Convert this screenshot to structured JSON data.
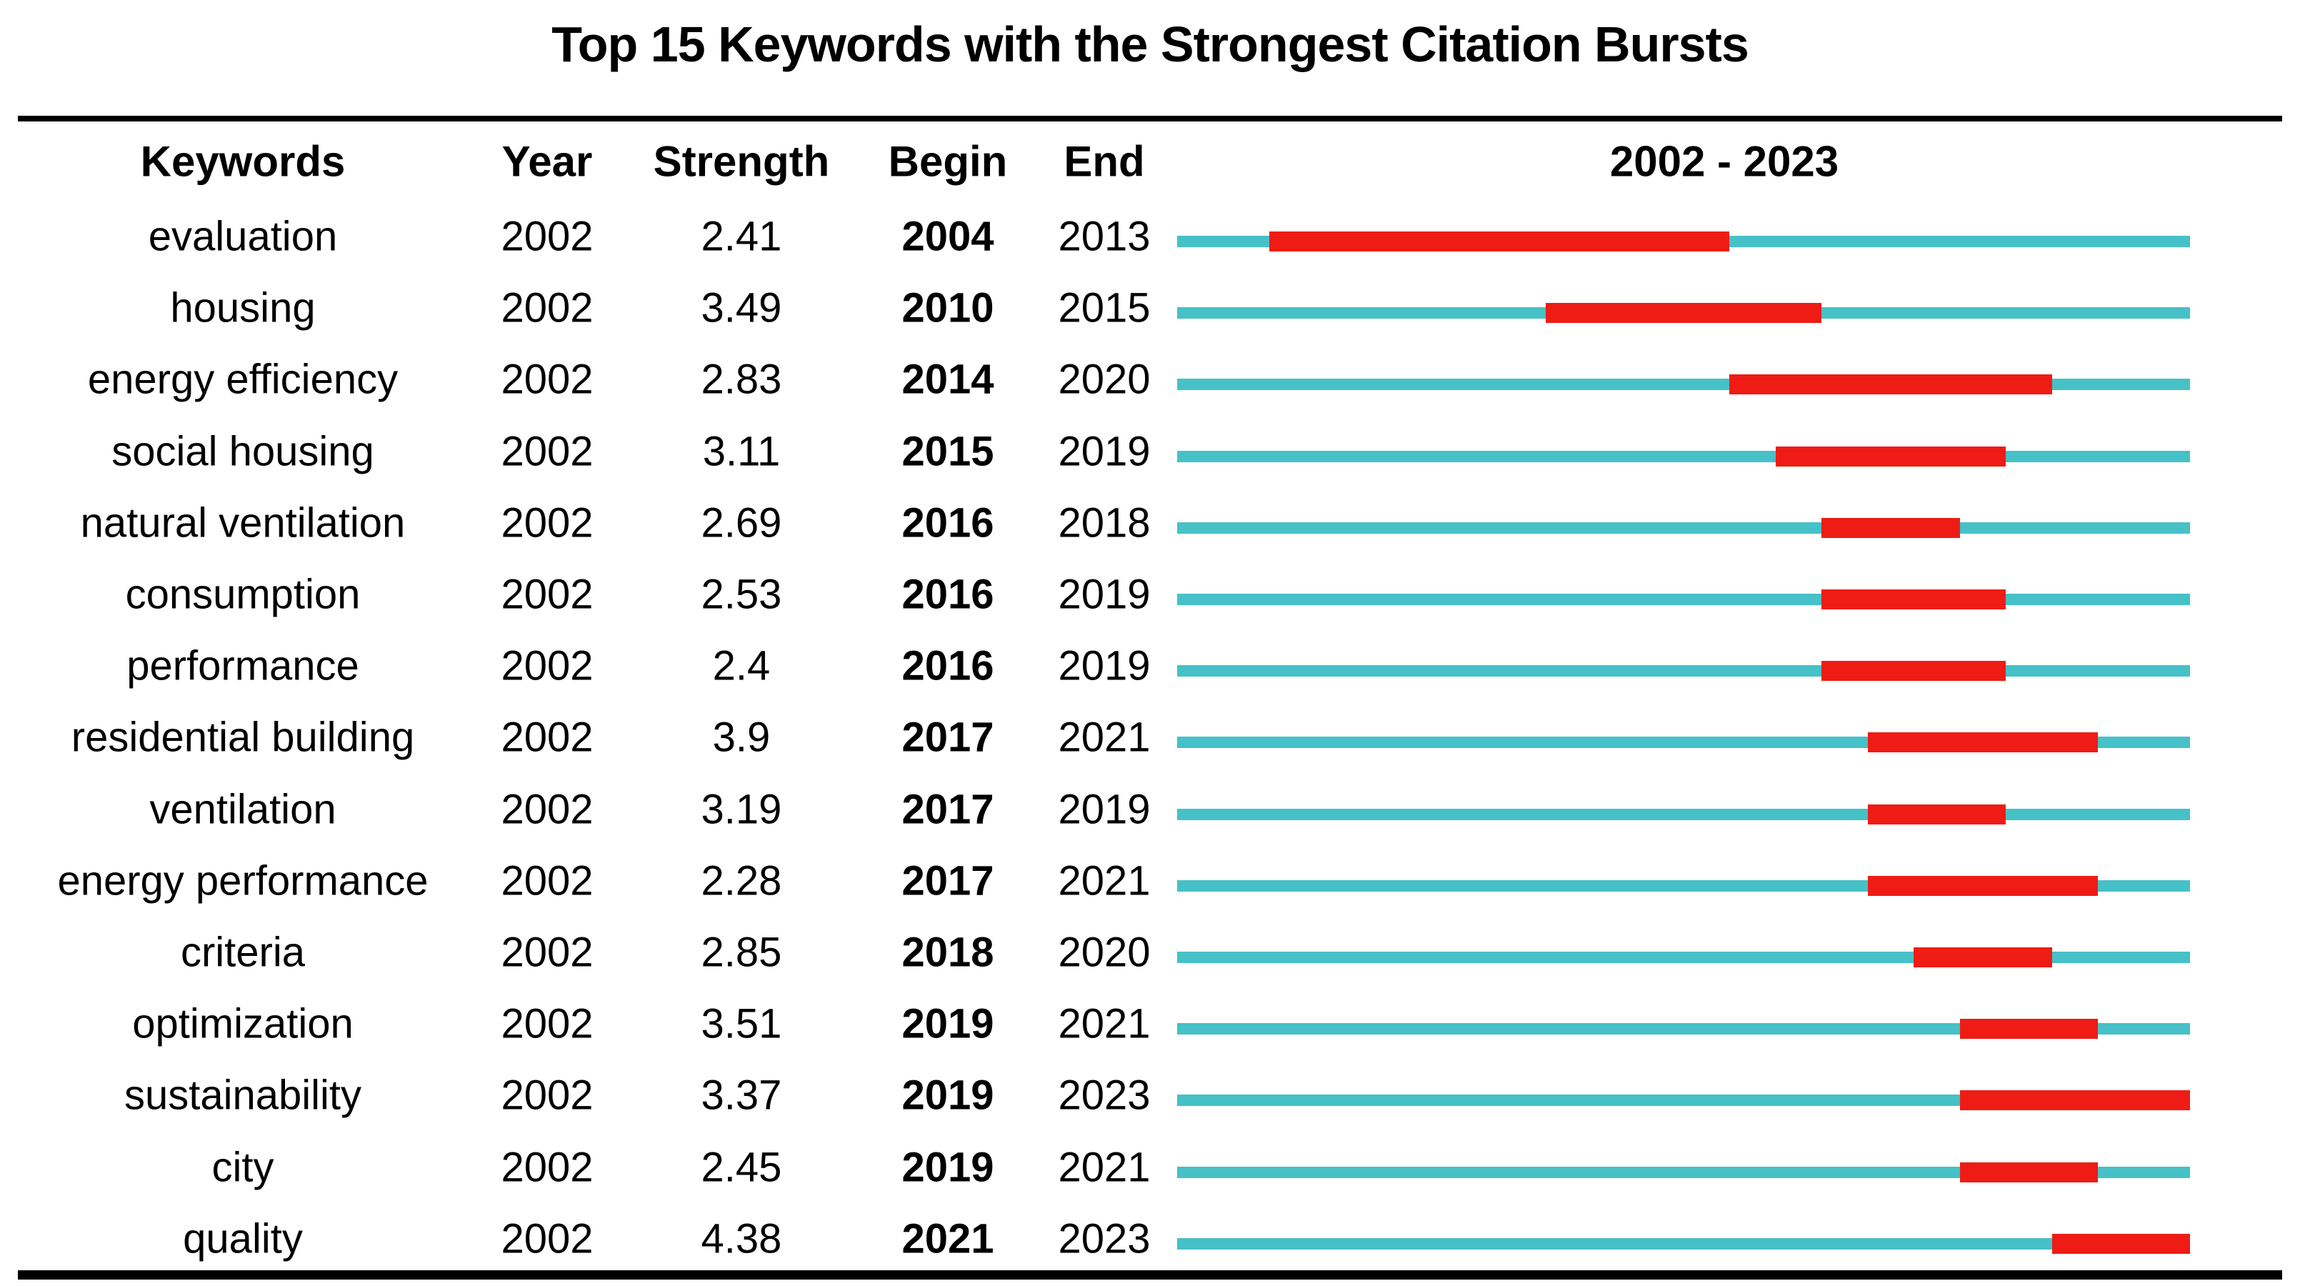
{
  "title": "Top 15 Keywords with the Strongest Citation Bursts",
  "header": {
    "keywords": "Keywords",
    "year": "Year",
    "strength": "Strength",
    "begin": "Begin",
    "end": "End",
    "range": "2002 - 2023"
  },
  "colors": {
    "timeline": "#46C1C7",
    "burst": "#EE1C15",
    "rule": "#000000",
    "text": "#000000",
    "background": "#FFFFFF"
  },
  "chart_data": {
    "type": "table",
    "title": "Top 15 Keywords with the Strongest Citation Bursts",
    "description": "Citation burst timeline table; each row shows a teal line spanning 2002-2023 with a red segment from the burst Begin year through the End year inclusive",
    "timeline_start": 2002,
    "timeline_end": 2023,
    "columns": [
      "Keywords",
      "Year",
      "Strength",
      "Begin",
      "End",
      "2002 - 2023"
    ],
    "rows": [
      {
        "keyword": "evaluation",
        "year": "2002",
        "strength": "2.41",
        "begin": 2004,
        "end": 2013
      },
      {
        "keyword": "housing",
        "year": "2002",
        "strength": "3.49",
        "begin": 2010,
        "end": 2015
      },
      {
        "keyword": "energy efficiency",
        "year": "2002",
        "strength": "2.83",
        "begin": 2014,
        "end": 2020
      },
      {
        "keyword": "social housing",
        "year": "2002",
        "strength": "3.11",
        "begin": 2015,
        "end": 2019
      },
      {
        "keyword": "natural ventilation",
        "year": "2002",
        "strength": "2.69",
        "begin": 2016,
        "end": 2018
      },
      {
        "keyword": "consumption",
        "year": "2002",
        "strength": "2.53",
        "begin": 2016,
        "end": 2019
      },
      {
        "keyword": "performance",
        "year": "2002",
        "strength": "2.4",
        "begin": 2016,
        "end": 2019
      },
      {
        "keyword": "residential building",
        "year": "2002",
        "strength": "3.9",
        "begin": 2017,
        "end": 2021
      },
      {
        "keyword": "ventilation",
        "year": "2002",
        "strength": "3.19",
        "begin": 2017,
        "end": 2019
      },
      {
        "keyword": "energy performance",
        "year": "2002",
        "strength": "2.28",
        "begin": 2017,
        "end": 2021
      },
      {
        "keyword": "criteria",
        "year": "2002",
        "strength": "2.85",
        "begin": 2018,
        "end": 2020
      },
      {
        "keyword": "optimization",
        "year": "2002",
        "strength": "3.51",
        "begin": 2019,
        "end": 2021
      },
      {
        "keyword": "sustainability",
        "year": "2002",
        "strength": "3.37",
        "begin": 2019,
        "end": 2023
      },
      {
        "keyword": "city",
        "year": "2002",
        "strength": "2.45",
        "begin": 2019,
        "end": 2021
      },
      {
        "keyword": "quality",
        "year": "2002",
        "strength": "4.38",
        "begin": 2021,
        "end": 2023
      }
    ]
  }
}
